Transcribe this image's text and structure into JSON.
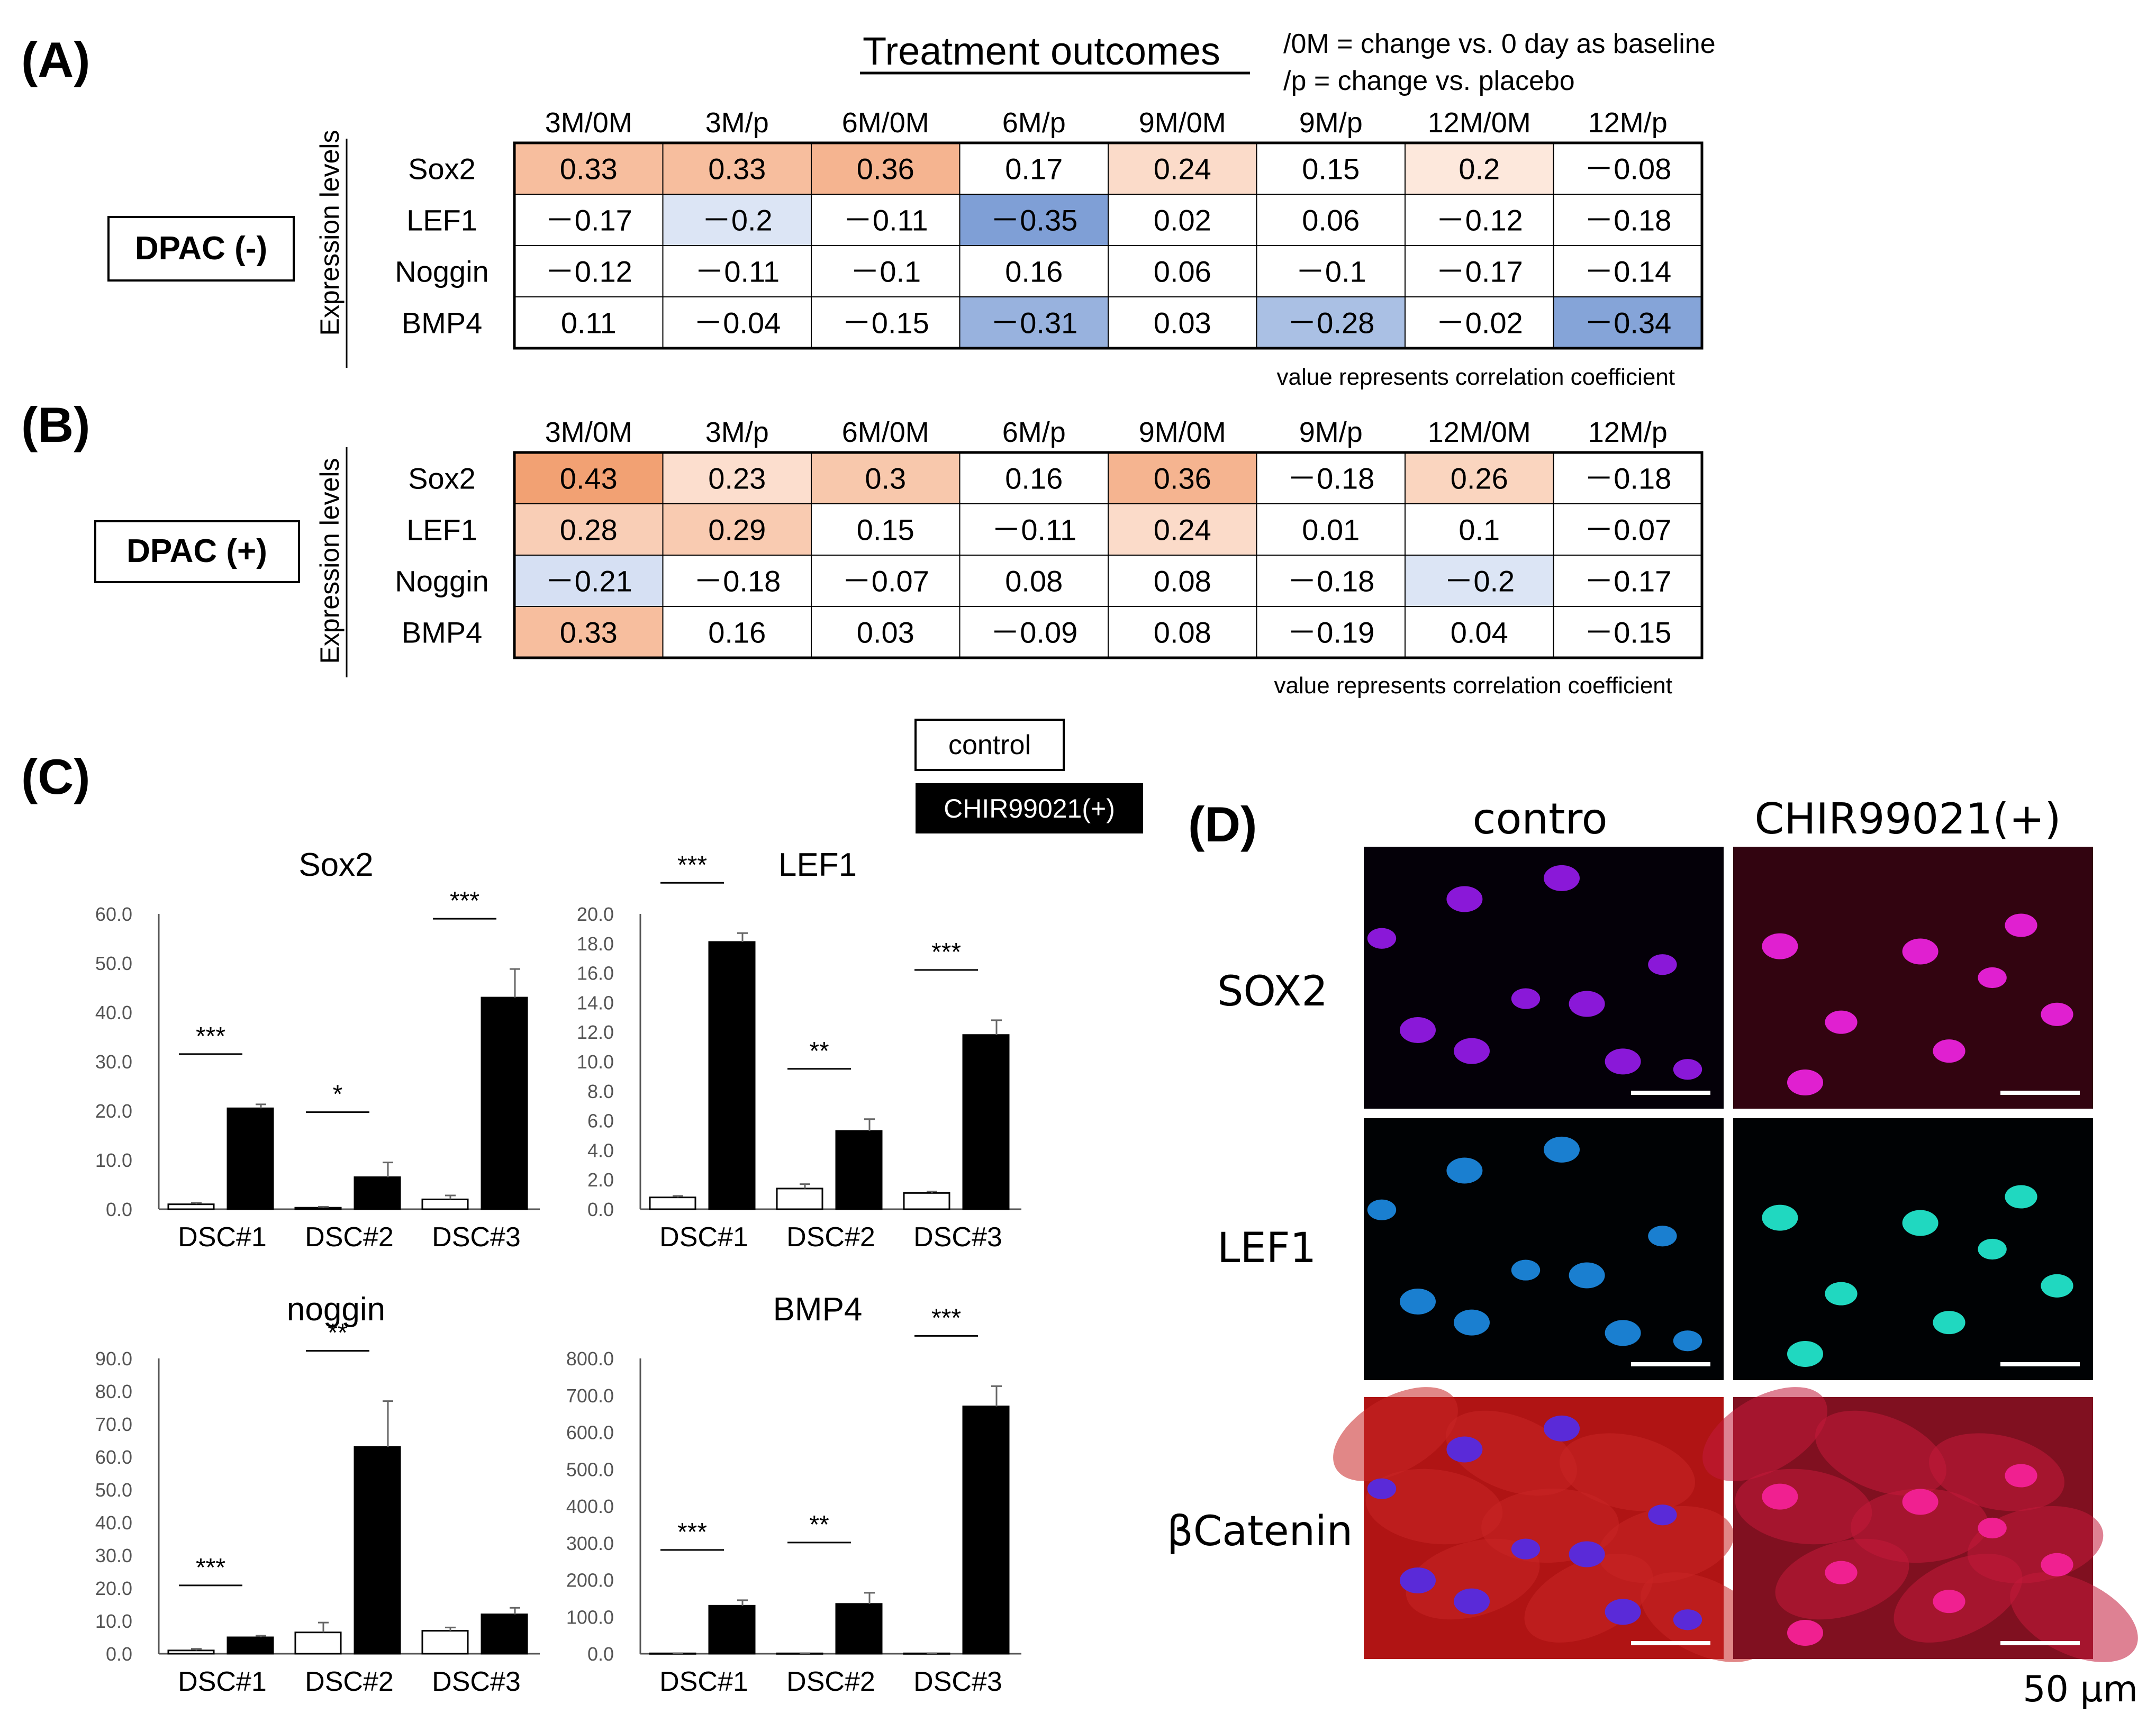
{
  "panels": {
    "a": "(A)",
    "b": "(B)",
    "c": "(C)",
    "d": "(D)"
  },
  "header": {
    "title": "Treatment outcomes",
    "legend_line1": "/0M  = change vs. 0 day as baseline",
    "legend_line2": "/p     = change vs. placebo"
  },
  "tables": [
    {
      "id": "A",
      "group_label": "DPAC (-)",
      "side_label": "Expression levels",
      "note": "value represents correlation coefficient",
      "columns": [
        "3M/0M",
        "3M/p",
        "6M/0M",
        "6M/p",
        "9M/0M",
        "9M/p",
        "12M/0M",
        "12M/p"
      ],
      "rows": [
        {
          "label": "Sox2",
          "cells": [
            "0.33",
            "0.33",
            "0.36",
            "0.17",
            "0.24",
            "0.15",
            "0.2",
            "－0.08"
          ]
        },
        {
          "label": "LEF1",
          "cells": [
            "－0.17",
            "－0.2",
            "－0.11",
            "－0.35",
            "0.02",
            "0.06",
            "－0.12",
            "－0.18"
          ]
        },
        {
          "label": "Noggin",
          "cells": [
            "－0.12",
            "－0.11",
            "－0.1",
            "0.16",
            "0.06",
            "－0.1",
            "－0.17",
            "－0.14"
          ]
        },
        {
          "label": "BMP4",
          "cells": [
            "0.11",
            "－0.04",
            "－0.15",
            "－0.31",
            "0.03",
            "－0.28",
            "－0.02",
            "－0.34"
          ]
        }
      ],
      "values": [
        [
          0.33,
          0.33,
          0.36,
          0.17,
          0.24,
          0.15,
          0.2,
          -0.08
        ],
        [
          -0.17,
          -0.2,
          -0.11,
          -0.35,
          0.02,
          0.06,
          -0.12,
          -0.18
        ],
        [
          -0.12,
          -0.11,
          -0.1,
          0.16,
          0.06,
          -0.1,
          -0.17,
          -0.14
        ],
        [
          0.11,
          -0.04,
          -0.15,
          -0.31,
          0.03,
          -0.28,
          -0.02,
          -0.34
        ]
      ]
    },
    {
      "id": "B",
      "group_label": "DPAC (+)",
      "side_label": "Expression levels",
      "note": "value represents correlation coefficient",
      "columns": [
        "3M/0M",
        "3M/p",
        "6M/0M",
        "6M/p",
        "9M/0M",
        "9M/p",
        "12M/0M",
        "12M/p"
      ],
      "rows": [
        {
          "label": "Sox2",
          "cells": [
            "0.43",
            "0.23",
            "0.3",
            "0.16",
            "0.36",
            "－0.18",
            "0.26",
            "－0.18"
          ]
        },
        {
          "label": "LEF1",
          "cells": [
            "0.28",
            "0.29",
            "0.15",
            "－0.11",
            "0.24",
            "0.01",
            "0.1",
            "－0.07"
          ]
        },
        {
          "label": "Noggin",
          "cells": [
            "－0.21",
            "－0.18",
            "－0.07",
            "0.08",
            "0.08",
            "－0.18",
            "－0.2",
            "－0.17"
          ]
        },
        {
          "label": "BMP4",
          "cells": [
            "0.33",
            "0.16",
            "0.03",
            "－0.09",
            "0.08",
            "－0.19",
            "0.04",
            "－0.15"
          ]
        }
      ],
      "values": [
        [
          0.43,
          0.23,
          0.3,
          0.16,
          0.36,
          -0.18,
          0.26,
          -0.18
        ],
        [
          0.28,
          0.29,
          0.15,
          -0.11,
          0.24,
          0.01,
          0.1,
          -0.07
        ],
        [
          -0.21,
          -0.18,
          -0.07,
          0.08,
          0.08,
          -0.18,
          -0.2,
          -0.17
        ],
        [
          0.33,
          0.16,
          0.03,
          -0.09,
          0.08,
          -0.19,
          0.04,
          -0.15
        ]
      ]
    }
  ],
  "legend": {
    "control": "control",
    "treated": "CHIR99021(+)"
  },
  "colors": {
    "positive": "#f2a173",
    "negative": "#7f9fd6",
    "control_fill": "#ffffff",
    "treated_fill": "#000000"
  },
  "chart_data": [
    {
      "type": "bar",
      "title": "Sox2",
      "categories": [
        "DSC#1",
        "DSC#2",
        "DSC#3"
      ],
      "series": [
        {
          "name": "control",
          "values": [
            1.0,
            0.3,
            2.0
          ],
          "errors": [
            0.3,
            0.2,
            0.8
          ]
        },
        {
          "name": "CHIR99021(+)",
          "values": [
            20.5,
            6.5,
            43.0
          ],
          "errors": [
            0.8,
            3.0,
            5.8
          ]
        }
      ],
      "ylim": [
        0,
        60
      ],
      "ytick_step": 10,
      "yticks": [
        "0.0",
        "10.0",
        "20.0",
        "30.0",
        "40.0",
        "50.0",
        "60.0"
      ],
      "significance": [
        "***",
        "*",
        "***"
      ]
    },
    {
      "type": "bar",
      "title": "LEF1",
      "categories": [
        "DSC#1",
        "DSC#2",
        "DSC#3"
      ],
      "series": [
        {
          "name": "control",
          "values": [
            0.8,
            1.4,
            1.1
          ],
          "errors": [
            0.1,
            0.3,
            0.1
          ]
        },
        {
          "name": "CHIR99021(+)",
          "values": [
            18.1,
            5.3,
            11.8
          ],
          "errors": [
            0.6,
            0.8,
            1.0
          ]
        }
      ],
      "ylim": [
        0,
        20
      ],
      "ytick_step": 2,
      "yticks": [
        "0.0",
        "2.0",
        "4.0",
        "6.0",
        "8.0",
        "10.0",
        "12.0",
        "14.0",
        "16.0",
        "18.0",
        "20.0"
      ],
      "significance": [
        "***",
        "**",
        "***"
      ]
    },
    {
      "type": "bar",
      "title": "noggin",
      "categories": [
        "DSC#1",
        "DSC#2",
        "DSC#3"
      ],
      "series": [
        {
          "name": "control",
          "values": [
            1.0,
            6.5,
            7.0
          ],
          "errors": [
            0.5,
            3.0,
            1.0
          ]
        },
        {
          "name": "CHIR99021(+)",
          "values": [
            5.0,
            63.0,
            12.0
          ],
          "errors": [
            0.5,
            14.0,
            2.0
          ]
        }
      ],
      "ylim": [
        0,
        90
      ],
      "ytick_step": 10,
      "yticks": [
        "0.0",
        "10.0",
        "20.0",
        "30.0",
        "40.0",
        "50.0",
        "60.0",
        "70.0",
        "80.0",
        "90.0"
      ],
      "significance": [
        "***",
        "**",
        ""
      ]
    },
    {
      "type": "bar",
      "title": "BMP4",
      "categories": [
        "DSC#1",
        "DSC#2",
        "DSC#3"
      ],
      "series": [
        {
          "name": "control",
          "values": [
            1.0,
            1.0,
            1.0
          ],
          "errors": [
            0.5,
            0.5,
            0.5
          ]
        },
        {
          "name": "CHIR99021(+)",
          "values": [
            130,
            135,
            670
          ],
          "errors": [
            15,
            30,
            55
          ]
        }
      ],
      "ylim": [
        0,
        800
      ],
      "ytick_step": 100,
      "yticks": [
        "0.0",
        "100.0",
        "200.0",
        "300.0",
        "400.0",
        "500.0",
        "600.0",
        "700.0",
        "800.0"
      ],
      "significance": [
        "***",
        "**",
        "***"
      ]
    }
  ],
  "micrographs": {
    "col_headers": [
      "contro",
      "CHIR99021(+)"
    ],
    "row_labels": [
      "SOX2",
      "LEF1",
      "βCatenin"
    ],
    "scale_label": "50 μm",
    "nucleus_colors": {
      "SOX2": [
        "#8a18d8",
        "#e020d0"
      ],
      "LEF1": [
        "#1a7fd0",
        "#20d8c0"
      ],
      "βCatenin": [
        "#5a2ad8",
        "#f02090"
      ]
    },
    "background_colors": {
      "SOX2": [
        "#040008",
        "#320410"
      ],
      "LEF1": [
        "#000204",
        "#000204"
      ],
      "βCatenin": [
        "#b01414",
        "#801020"
      ]
    }
  }
}
